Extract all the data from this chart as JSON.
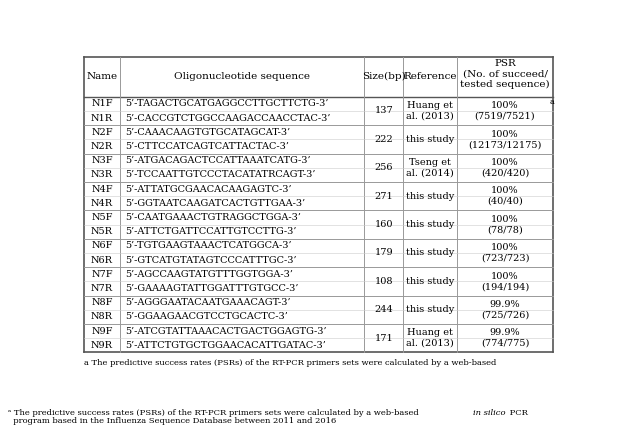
{
  "col_headers": [
    "Name",
    "Oligonucleotide sequence",
    "Size(bp)",
    "Reference",
    "PSR\n(No. of succeed/\ntested sequence)"
  ],
  "header_superscript": "a",
  "rows": [
    [
      "N1F",
      "5’-TAGACTGCATGAGGCCTTGCTTCTG-3’"
    ],
    [
      "N1R",
      "5’-CACCGTCTGGCCAAGACCAACCTAC-3’"
    ],
    [
      "N2F",
      "5’-CAAACAAGTGTGCATAGCAT-3’"
    ],
    [
      "N2R",
      "5’-CTTCCATCAGTCATTACTAC-3’"
    ],
    [
      "N3F",
      "5’-ATGACAGACTCCATTAAATCATG-3’"
    ],
    [
      "N3R",
      "5’-TCCAATTGTCCCTACATATRCAGT-3’"
    ],
    [
      "N4F",
      "5’-ATTATGCGAACACAAGAGTC-3’"
    ],
    [
      "N4R",
      "5’-GGTAATCAAGATCACTGTTGAA-3’"
    ],
    [
      "N5F",
      "5’-CAATGAAACTGTRAGGCTGGA-3’"
    ],
    [
      "N5R",
      "5’-ATTCTGATTCCATTGTCCTTG-3’"
    ],
    [
      "N6F",
      "5’-TGTGAAGTAAACTCATGGCA-3’"
    ],
    [
      "N6R",
      "5’-GTCATGTATAGTCCCATTTGC-3’"
    ],
    [
      "N7F",
      "5’-AGCCAAGTATGTTTGGTGGA-3’"
    ],
    [
      "N7R",
      "5’-GAAAAGTATTGGATTTGTGCC-3’"
    ],
    [
      "N8F",
      "5’-AGGGAATACAATGAAACAGT-3’"
    ],
    [
      "N8R",
      "5’-GGAAGAACGTCCTGCACTC-3’"
    ],
    [
      "N9F",
      "5’-ATCGTATTAAACACTGACTGGAGTG-3’"
    ],
    [
      "N9R",
      "5’-ATTCTGTGCTGGAACACATTGATAC-3’"
    ]
  ],
  "groups": [
    {
      "rows": [
        0,
        1
      ],
      "size": "137",
      "ref": "Huang et\nal. (2013)",
      "psr": "100%\n(7519/7521)"
    },
    {
      "rows": [
        2,
        3
      ],
      "size": "222",
      "ref": "this study",
      "psr": "100%\n(12173/12175)"
    },
    {
      "rows": [
        4,
        5
      ],
      "size": "256",
      "ref": "Tseng et\nal. (2014)",
      "psr": "100%\n(420/420)"
    },
    {
      "rows": [
        6,
        7
      ],
      "size": "271",
      "ref": "this study",
      "psr": "100%\n(40/40)"
    },
    {
      "rows": [
        8,
        9
      ],
      "size": "160",
      "ref": "this study",
      "psr": "100%\n(78/78)"
    },
    {
      "rows": [
        10,
        11
      ],
      "size": "179",
      "ref": "this study",
      "psr": "100%\n(723/723)"
    },
    {
      "rows": [
        12,
        13
      ],
      "size": "108",
      "ref": "this study",
      "psr": "100%\n(194/194)"
    },
    {
      "rows": [
        14,
        15
      ],
      "size": "244",
      "ref": "this study",
      "psr": "99.9%\n(725/726)"
    },
    {
      "rows": [
        16,
        17
      ],
      "size": "171",
      "ref": "Huang et\nal. (2013)",
      "psr": "99.9%\n(774/775)"
    }
  ],
  "footnote_prefix": "a ",
  "footnote_main": "The predictive success rates (PSRs) of the RT-PCR primers sets were calculated by a web-based ",
  "footnote_italic": "in silico",
  "footnote_suffix": " PCR\n  program based in the Influenza Sequence Database between 2011 and 2016",
  "bg_color": "#ffffff",
  "text_color": "#000000",
  "line_color": "#999999",
  "outer_line_color": "#555555",
  "font_size": 7.0,
  "header_font_size": 7.5
}
